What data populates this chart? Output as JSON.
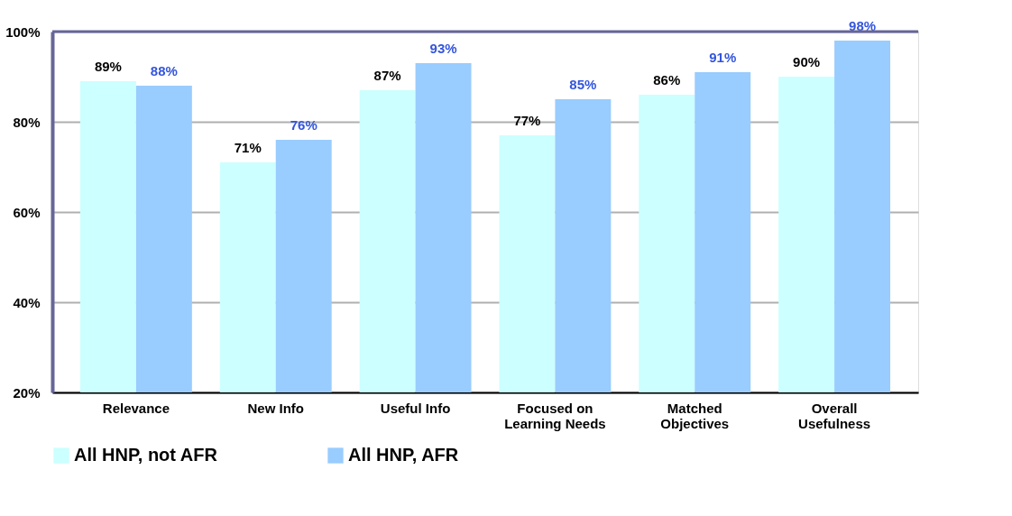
{
  "chart_data": {
    "type": "bar",
    "categories": [
      "Relevance",
      "New Info",
      "Useful Info",
      "Focused on Learning Needs",
      "Matched Objectives",
      "Overall Usefulness"
    ],
    "series": [
      {
        "name": "All HNP, not AFR",
        "color": "#ccffff",
        "values": [
          89,
          71,
          87,
          77,
          86,
          90
        ],
        "value_labels": [
          "89%",
          "71%",
          "87%",
          "77%",
          "86%",
          "90%"
        ]
      },
      {
        "name": "All HNP, AFR",
        "color": "#99ccff",
        "values": [
          88,
          76,
          93,
          85,
          91,
          98
        ],
        "value_labels": [
          "88%",
          "76%",
          "93%",
          "85%",
          "91%",
          "98%"
        ]
      }
    ],
    "ylim": [
      20,
      100
    ],
    "yticks": [
      {
        "value": 20,
        "label": "20%"
      },
      {
        "value": 40,
        "label": "40%"
      },
      {
        "value": 60,
        "label": "60%"
      },
      {
        "value": 80,
        "label": "80%"
      },
      {
        "value": 100,
        "label": "100%"
      }
    ],
    "grid": "y",
    "legend": "bottom"
  }
}
